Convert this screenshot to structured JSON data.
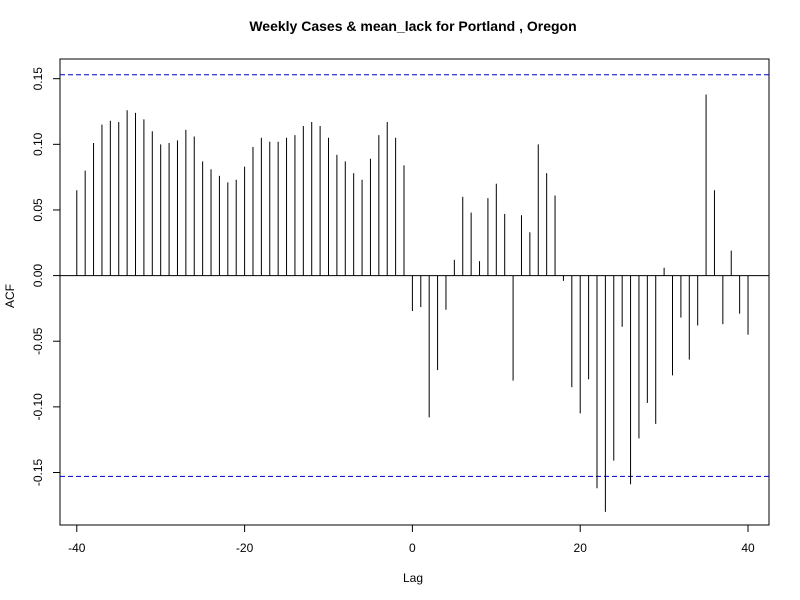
{
  "chart_data": {
    "type": "bar",
    "title": "Weekly Cases & mean_lack for Portland , Oregon",
    "xlabel": "Lag",
    "ylabel": "ACF",
    "xlim": [
      -42,
      42.5
    ],
    "ylim": [
      -0.19,
      0.165
    ],
    "xticks": [
      -40,
      -20,
      0,
      20,
      40
    ],
    "yticks": [
      -0.15,
      -0.1,
      -0.05,
      0.0,
      0.05,
      0.1,
      0.15
    ],
    "ytick_labels": [
      "-0.15",
      "-0.10",
      "-0.05",
      "0.00",
      "0.05",
      "0.10",
      "0.15"
    ],
    "confidence_bound": 0.153,
    "colors": {
      "bars": "#000000",
      "ci_lines": "#0000cc",
      "zero_line": "#000000"
    },
    "lags": [
      -40,
      -39,
      -38,
      -37,
      -36,
      -35,
      -34,
      -33,
      -32,
      -31,
      -30,
      -29,
      -28,
      -27,
      -26,
      -25,
      -24,
      -23,
      -22,
      -21,
      -20,
      -19,
      -18,
      -17,
      -16,
      -15,
      -14,
      -13,
      -12,
      -11,
      -10,
      -9,
      -8,
      -7,
      -6,
      -5,
      -4,
      -3,
      -2,
      -1,
      0,
      1,
      2,
      3,
      4,
      5,
      6,
      7,
      8,
      9,
      10,
      11,
      12,
      13,
      14,
      15,
      16,
      17,
      18,
      19,
      20,
      21,
      22,
      23,
      24,
      25,
      26,
      27,
      28,
      29,
      30,
      31,
      32,
      33,
      34,
      35,
      36,
      37,
      38,
      39,
      40
    ],
    "values": [
      0.065,
      0.08,
      0.101,
      0.115,
      0.118,
      0.117,
      0.126,
      0.124,
      0.119,
      0.11,
      0.1,
      0.101,
      0.103,
      0.111,
      0.106,
      0.087,
      0.081,
      0.076,
      0.071,
      0.073,
      0.083,
      0.098,
      0.105,
      0.102,
      0.102,
      0.105,
      0.107,
      0.114,
      0.117,
      0.114,
      0.105,
      0.092,
      0.087,
      0.078,
      0.073,
      0.089,
      0.107,
      0.117,
      0.105,
      0.084,
      -0.027,
      -0.024,
      -0.108,
      -0.072,
      -0.026,
      0.012,
      0.06,
      0.048,
      0.011,
      0.059,
      0.07,
      0.047,
      -0.08,
      0.046,
      0.033,
      0.1,
      0.078,
      0.061,
      -0.004,
      -0.085,
      -0.105,
      -0.079,
      -0.162,
      -0.18,
      -0.141,
      -0.039,
      -0.159,
      -0.124,
      -0.097,
      -0.113,
      0.006,
      -0.076,
      -0.032,
      -0.064,
      -0.038,
      0.138,
      0.065,
      -0.037,
      0.019,
      -0.029,
      -0.045
    ]
  }
}
